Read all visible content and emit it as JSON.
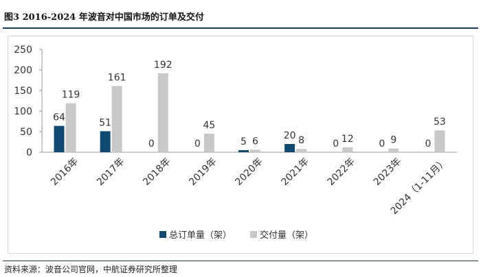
{
  "title": "图3  2016-2024 年波音对中国市场的订单及交付",
  "source": "资料来源：波音公司官网，中航证券研究所整理",
  "chart_data": {
    "type": "bar",
    "categories": [
      "2016年",
      "2017年",
      "2018年",
      "2019年",
      "2020年",
      "2021年",
      "2022年",
      "2023年",
      "2024（1-11月）"
    ],
    "series": [
      {
        "name": "总订单量（架）",
        "values": [
          64,
          51,
          0,
          0,
          5,
          20,
          0,
          0,
          0
        ],
        "color": "#0e4a72"
      },
      {
        "name": "交付量（架）",
        "values": [
          119,
          161,
          192,
          45,
          6,
          8,
          12,
          9,
          53
        ],
        "color": "#c8c8c8"
      }
    ],
    "yticks": [
      0,
      50,
      100,
      150,
      200,
      250
    ],
    "ylim": [
      0,
      250
    ],
    "grid": false,
    "legend": "bottom-center"
  }
}
